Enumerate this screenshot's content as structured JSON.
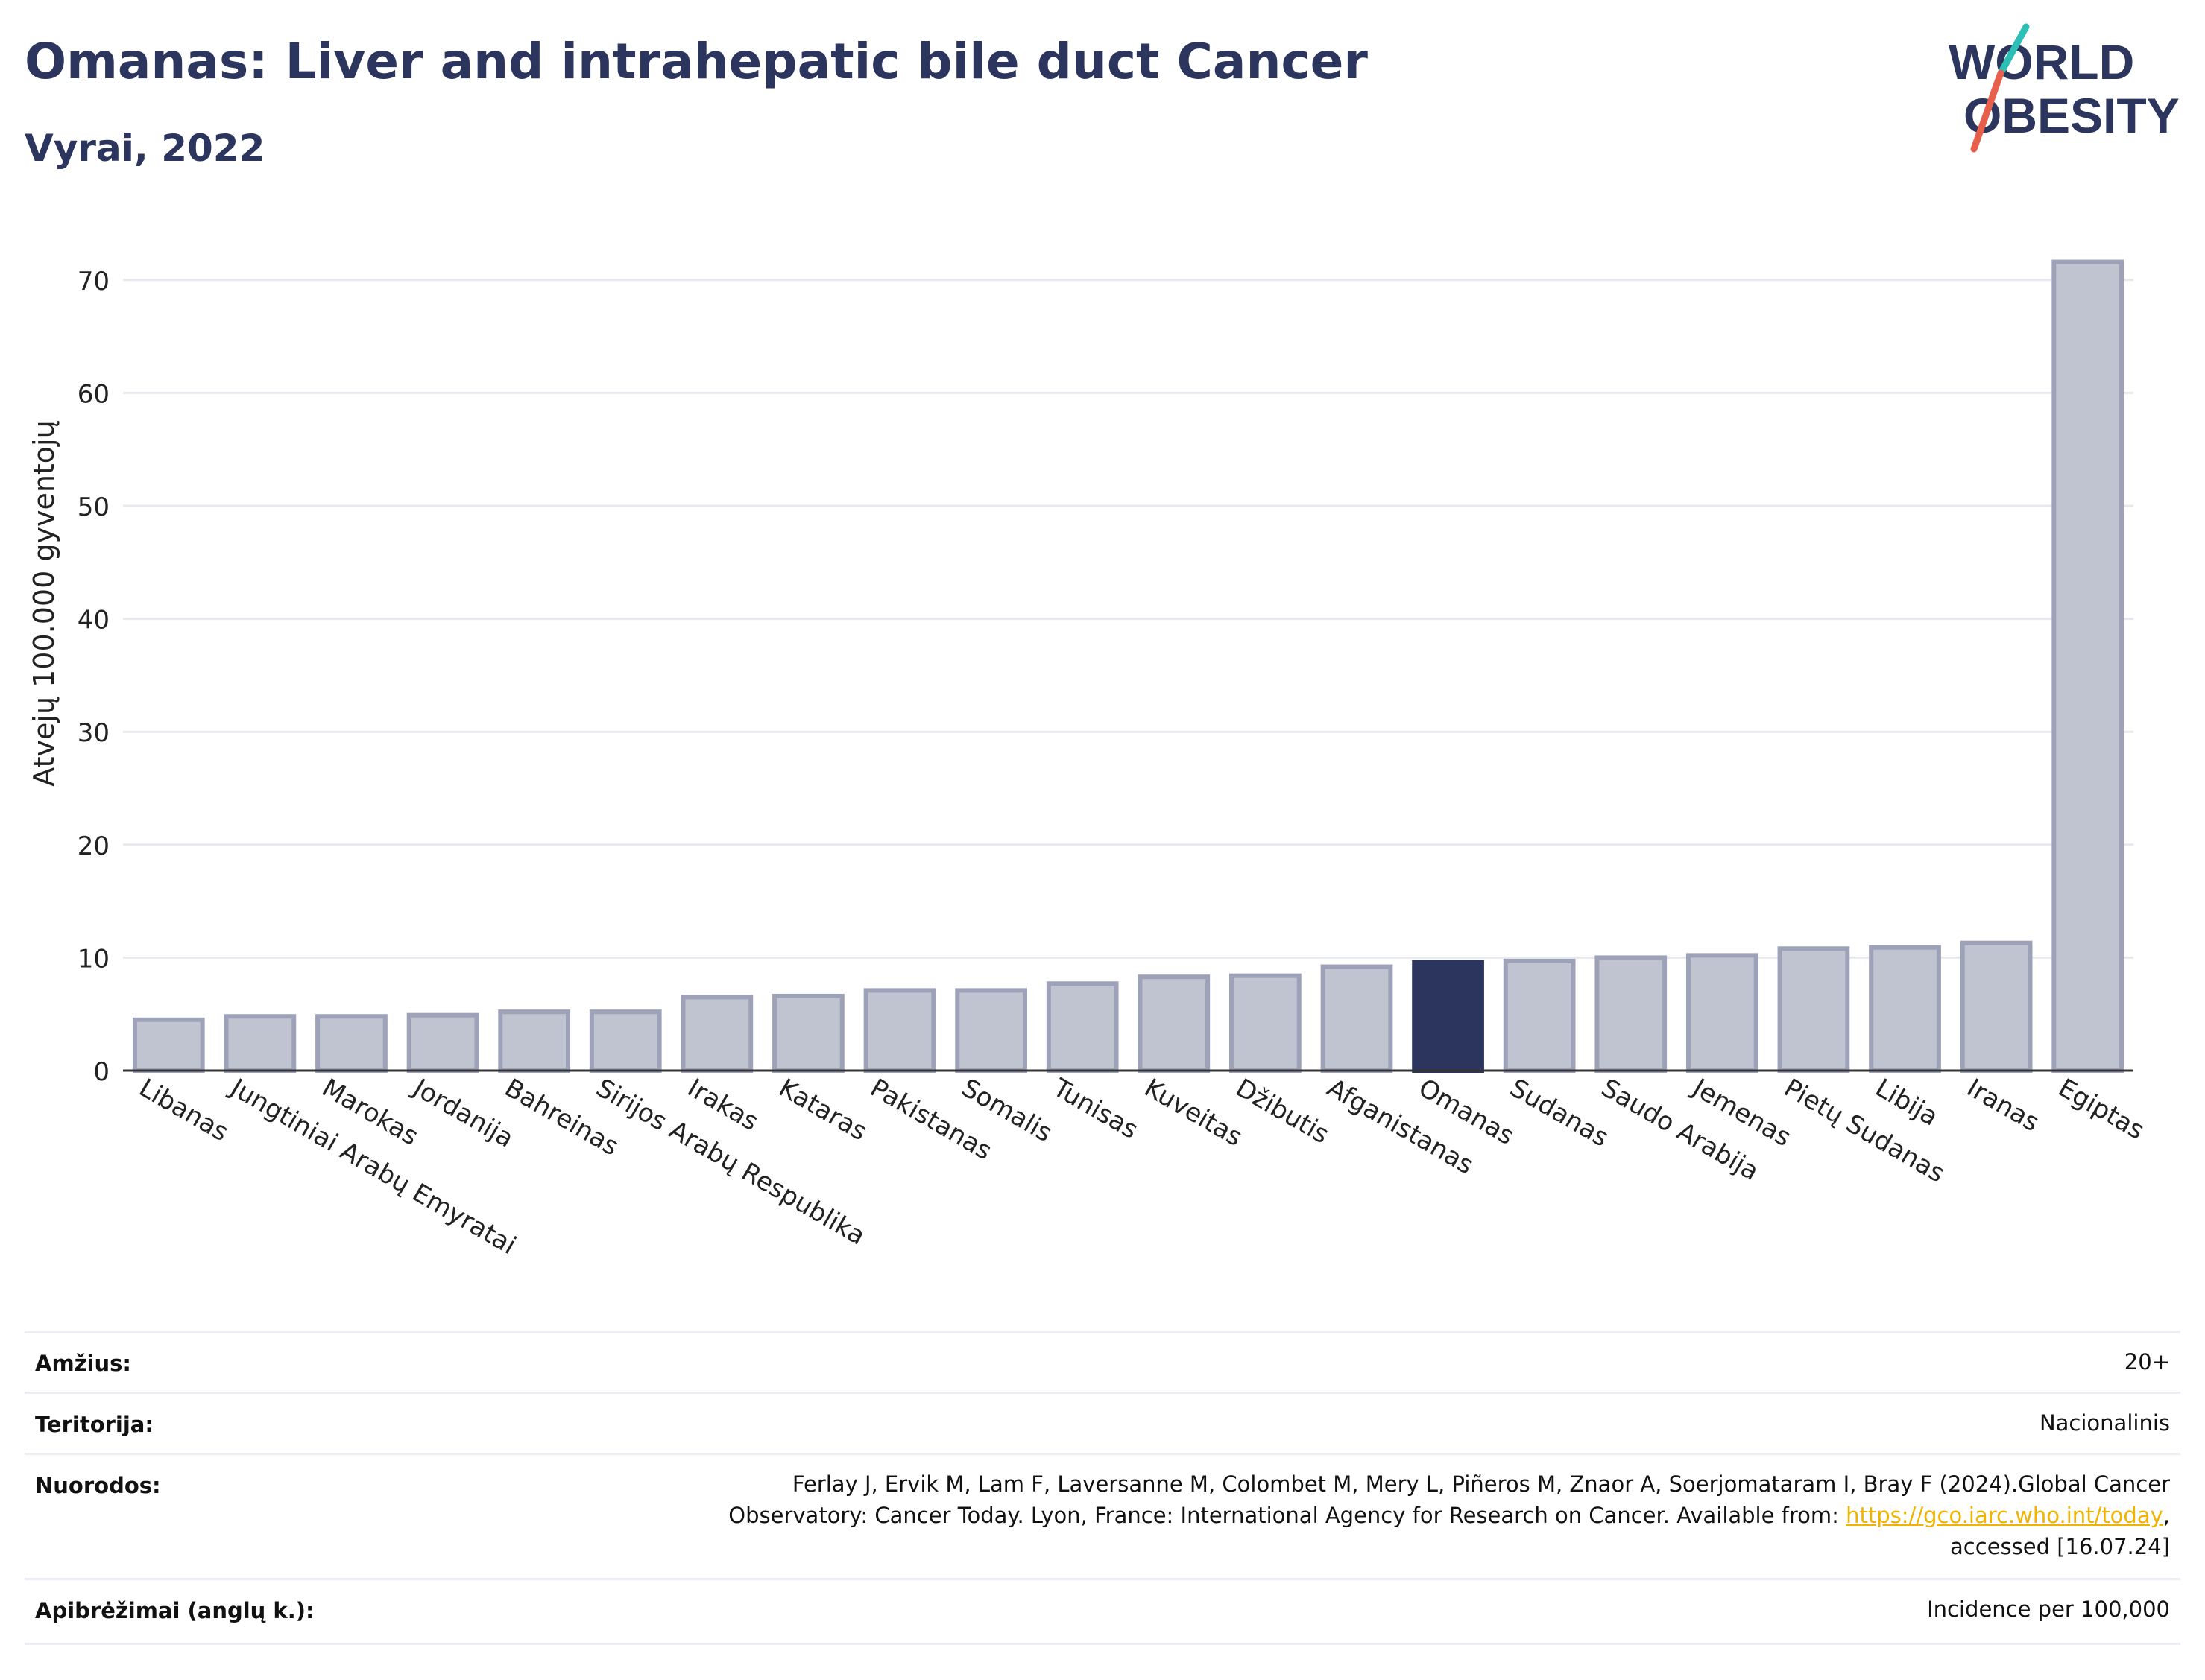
{
  "header": {
    "title": "Omanas: Liver and intrahepatic bile duct Cancer",
    "subtitle": "Vyrai, 2022"
  },
  "logo": {
    "line1": "WORLD",
    "line2": "OBESITY",
    "accent_teal": "#2bbfb5",
    "accent_red": "#e8604c"
  },
  "chart_data": {
    "type": "bar",
    "title": "Omanas: Liver and intrahepatic bile duct Cancer",
    "ylabel": "Atvejų 100.000 gyventojų",
    "xlabel": "",
    "ylim": [
      0,
      75
    ],
    "yticks": [
      0,
      10,
      20,
      30,
      40,
      50,
      60,
      70
    ],
    "grid": true,
    "categories": [
      "Libanas",
      "Jungtiniai Arabų Emyratai",
      "Marokas",
      "Jordanija",
      "Bahreinas",
      "Sirijos Arabų Respublika",
      "Irakas",
      "Kataras",
      "Pakistanas",
      "Somalis",
      "Tunisas",
      "Kuveitas",
      "Džibutis",
      "Afganistanas",
      "Omanas",
      "Sudanas",
      "Saudo Arabija",
      "Jemenas",
      "Pietų Sudanas",
      "Libija",
      "Iranas",
      "Egiptas"
    ],
    "values": [
      4.5,
      4.8,
      4.8,
      4.9,
      5.2,
      5.2,
      6.5,
      6.6,
      7.1,
      7.1,
      7.7,
      8.3,
      8.4,
      9.2,
      9.6,
      9.7,
      10.0,
      10.2,
      10.8,
      10.9,
      11.3,
      71.6
    ],
    "highlight": "Omanas",
    "colors": {
      "bar": "#c0c3d0",
      "bar_border": "#9ea2b8",
      "highlight": "#2b355e",
      "grid": "#e8e9ee"
    }
  },
  "meta": {
    "age_label": "Amžius:",
    "age_value": "20+",
    "territory_label": "Teritorija:",
    "territory_value": "Nacionalinis",
    "refs_label": "Nuorodos:",
    "refs_line1": "Ferlay J, Ervik M, Lam F, Laversanne M, Colombet M, Mery L, Piñeros M, Znaor A, Soerjomataram I, Bray F (2024).Global Cancer",
    "refs_line2_pre": "Observatory: Cancer Today. Lyon, France: International Agency for Research on Cancer. Available from: ",
    "refs_link": "https://gco.iarc.who.int/today",
    "refs_line2_post": ",",
    "refs_line3": "accessed [16.07.24]",
    "defs_label": "Apibrėžimai (anglų k.):",
    "defs_value": "Incidence per 100,000"
  }
}
